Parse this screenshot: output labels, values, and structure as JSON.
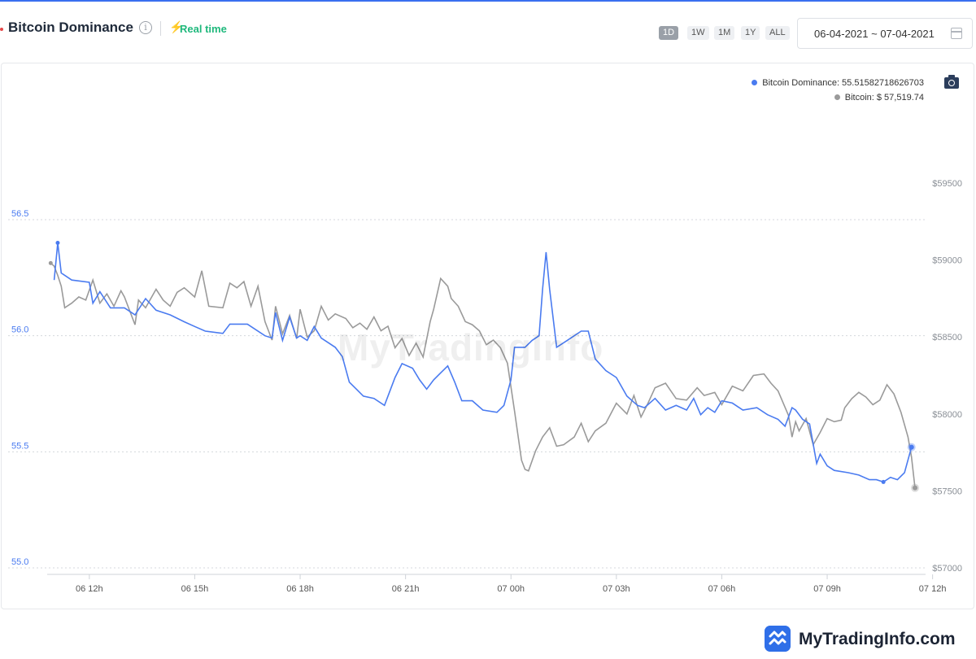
{
  "header": {
    "title": "Bitcoin Dominance",
    "realtime_label": "Real time",
    "ranges": [
      {
        "label": "1D",
        "active": true
      },
      {
        "label": "1W",
        "active": false
      },
      {
        "label": "1M",
        "active": false
      },
      {
        "label": "1Y",
        "active": false
      },
      {
        "label": "ALL",
        "active": false
      }
    ],
    "date_range": "06-04-2021 ~ 07-04-2021"
  },
  "icons": {
    "info": "info-icon",
    "realtime": "bolt-icon",
    "calendar": "calendar-icon",
    "screenshot": "camera-icon",
    "brand": "brand-logo-icon"
  },
  "legend": {
    "dominance": "Bitcoin Dominance: 55.51582718626703",
    "price": "Bitcoin: $ 57,519.74"
  },
  "colors": {
    "dominance": "#4a7bf0",
    "price": "#9a9a9a",
    "accent": "#1fb87c",
    "brand": "#2f6fe8"
  },
  "watermark": "MyTradingInfo",
  "brand": {
    "name": "MyTradingInfo.com"
  },
  "chart_data": {
    "type": "line",
    "x_ticks": [
      "06 12h",
      "06 15h",
      "06 18h",
      "06 21h",
      "07 00h",
      "07 03h",
      "07 06h",
      "07 09h",
      "07 12h"
    ],
    "x_range_hours": [
      10.8,
      35.8
    ],
    "y_left": {
      "ticks": [
        "55.0",
        "55.5",
        "56.0",
        "56.5"
      ],
      "range": [
        55.0,
        56.5
      ]
    },
    "y_right": {
      "ticks": [
        "$57000",
        "$57500",
        "$58000",
        "$58500",
        "$59000",
        "$59500"
      ],
      "range": [
        57000,
        59500
      ]
    },
    "grid": "horizontal dotted",
    "legend_position": "top-right",
    "series": [
      {
        "key": "dominance",
        "axis": "left",
        "points": [
          [
            11.0,
            56.24
          ],
          [
            11.1,
            56.4
          ],
          [
            11.2,
            56.27
          ],
          [
            11.5,
            56.24
          ],
          [
            12.0,
            56.23
          ],
          [
            12.1,
            56.14
          ],
          [
            12.3,
            56.19
          ],
          [
            12.6,
            56.12
          ],
          [
            13.0,
            56.12
          ],
          [
            13.3,
            56.09
          ],
          [
            13.6,
            56.16
          ],
          [
            13.9,
            56.11
          ],
          [
            14.3,
            56.09
          ],
          [
            14.7,
            56.06
          ],
          [
            15.0,
            56.04
          ],
          [
            15.3,
            56.02
          ],
          [
            15.8,
            56.01
          ],
          [
            16.0,
            56.05
          ],
          [
            16.5,
            56.05
          ],
          [
            17.0,
            56.0
          ],
          [
            17.2,
            55.99
          ],
          [
            17.3,
            56.1
          ],
          [
            17.5,
            55.98
          ],
          [
            17.7,
            56.08
          ],
          [
            17.9,
            55.99
          ],
          [
            18.0,
            56.0
          ],
          [
            18.2,
            55.98
          ],
          [
            18.4,
            56.04
          ],
          [
            18.6,
            55.99
          ],
          [
            18.8,
            55.97
          ],
          [
            19.0,
            55.95
          ],
          [
            19.2,
            55.91
          ],
          [
            19.4,
            55.8
          ],
          [
            19.6,
            55.77
          ],
          [
            19.8,
            55.74
          ],
          [
            20.1,
            55.73
          ],
          [
            20.4,
            55.7
          ],
          [
            20.7,
            55.82
          ],
          [
            20.9,
            55.88
          ],
          [
            21.2,
            55.86
          ],
          [
            21.4,
            55.81
          ],
          [
            21.6,
            55.77
          ],
          [
            21.8,
            55.81
          ],
          [
            22.0,
            55.84
          ],
          [
            22.2,
            55.87
          ],
          [
            22.4,
            55.8
          ],
          [
            22.6,
            55.72
          ],
          [
            22.9,
            55.72
          ],
          [
            23.2,
            55.68
          ],
          [
            23.6,
            55.67
          ],
          [
            23.8,
            55.7
          ],
          [
            24.0,
            55.81
          ],
          [
            24.1,
            55.95
          ],
          [
            24.4,
            55.95
          ],
          [
            24.6,
            55.98
          ],
          [
            24.8,
            56.0
          ],
          [
            24.9,
            56.2
          ],
          [
            25.0,
            56.36
          ],
          [
            25.1,
            56.2
          ],
          [
            25.3,
            55.95
          ],
          [
            25.6,
            55.98
          ],
          [
            26.0,
            56.02
          ],
          [
            26.2,
            56.02
          ],
          [
            26.4,
            55.9
          ],
          [
            26.7,
            55.85
          ],
          [
            27.0,
            55.82
          ],
          [
            27.3,
            55.74
          ],
          [
            27.6,
            55.7
          ],
          [
            27.8,
            55.69
          ],
          [
            28.1,
            55.73
          ],
          [
            28.4,
            55.68
          ],
          [
            28.7,
            55.7
          ],
          [
            29.0,
            55.68
          ],
          [
            29.2,
            55.73
          ],
          [
            29.4,
            55.66
          ],
          [
            29.6,
            55.69
          ],
          [
            29.8,
            55.67
          ],
          [
            30.0,
            55.72
          ],
          [
            30.3,
            55.71
          ],
          [
            30.6,
            55.68
          ],
          [
            31.0,
            55.69
          ],
          [
            31.3,
            55.66
          ],
          [
            31.6,
            55.64
          ],
          [
            31.8,
            55.61
          ],
          [
            32.0,
            55.69
          ],
          [
            32.1,
            55.68
          ],
          [
            32.3,
            55.64
          ],
          [
            32.5,
            55.62
          ],
          [
            32.7,
            55.45
          ],
          [
            32.8,
            55.49
          ],
          [
            33.0,
            55.44
          ],
          [
            33.2,
            55.42
          ],
          [
            33.6,
            55.41
          ],
          [
            33.9,
            55.4
          ],
          [
            34.2,
            55.38
          ],
          [
            34.4,
            55.38
          ],
          [
            34.6,
            55.37
          ],
          [
            34.8,
            55.39
          ],
          [
            35.0,
            55.38
          ],
          [
            35.2,
            55.41
          ],
          [
            35.4,
            55.52
          ]
        ]
      },
      {
        "key": "price",
        "axis": "right",
        "points": [
          [
            10.9,
            58980
          ],
          [
            11.0,
            58960
          ],
          [
            11.1,
            58900
          ],
          [
            11.2,
            58830
          ],
          [
            11.3,
            58690
          ],
          [
            11.5,
            58720
          ],
          [
            11.7,
            58760
          ],
          [
            11.9,
            58740
          ],
          [
            12.1,
            58870
          ],
          [
            12.3,
            58720
          ],
          [
            12.5,
            58780
          ],
          [
            12.7,
            58700
          ],
          [
            12.9,
            58800
          ],
          [
            13.0,
            58760
          ],
          [
            13.3,
            58580
          ],
          [
            13.4,
            58740
          ],
          [
            13.6,
            58690
          ],
          [
            13.9,
            58810
          ],
          [
            14.1,
            58740
          ],
          [
            14.3,
            58700
          ],
          [
            14.5,
            58790
          ],
          [
            14.7,
            58820
          ],
          [
            15.0,
            58760
          ],
          [
            15.2,
            58930
          ],
          [
            15.4,
            58700
          ],
          [
            15.8,
            58690
          ],
          [
            16.0,
            58850
          ],
          [
            16.2,
            58820
          ],
          [
            16.4,
            58860
          ],
          [
            16.6,
            58700
          ],
          [
            16.8,
            58830
          ],
          [
            17.0,
            58600
          ],
          [
            17.2,
            58480
          ],
          [
            17.3,
            58700
          ],
          [
            17.5,
            58520
          ],
          [
            17.7,
            58640
          ],
          [
            17.9,
            58490
          ],
          [
            18.0,
            58680
          ],
          [
            18.2,
            58500
          ],
          [
            18.4,
            58540
          ],
          [
            18.6,
            58700
          ],
          [
            18.8,
            58610
          ],
          [
            19.0,
            58650
          ],
          [
            19.3,
            58620
          ],
          [
            19.5,
            58560
          ],
          [
            19.7,
            58590
          ],
          [
            19.9,
            58550
          ],
          [
            20.1,
            58630
          ],
          [
            20.3,
            58540
          ],
          [
            20.5,
            58570
          ],
          [
            20.7,
            58430
          ],
          [
            20.9,
            58490
          ],
          [
            21.1,
            58380
          ],
          [
            21.3,
            58460
          ],
          [
            21.5,
            58370
          ],
          [
            21.7,
            58600
          ],
          [
            21.8,
            58680
          ],
          [
            22.0,
            58880
          ],
          [
            22.2,
            58830
          ],
          [
            22.3,
            58750
          ],
          [
            22.5,
            58700
          ],
          [
            22.7,
            58600
          ],
          [
            22.9,
            58580
          ],
          [
            23.1,
            58540
          ],
          [
            23.3,
            58450
          ],
          [
            23.5,
            58480
          ],
          [
            23.7,
            58430
          ],
          [
            23.9,
            58330
          ],
          [
            24.1,
            58020
          ],
          [
            24.3,
            57700
          ],
          [
            24.4,
            57640
          ],
          [
            24.5,
            57630
          ],
          [
            24.7,
            57760
          ],
          [
            24.9,
            57850
          ],
          [
            25.1,
            57910
          ],
          [
            25.3,
            57790
          ],
          [
            25.5,
            57800
          ],
          [
            25.8,
            57850
          ],
          [
            26.0,
            57940
          ],
          [
            26.2,
            57820
          ],
          [
            26.4,
            57890
          ],
          [
            26.7,
            57940
          ],
          [
            27.0,
            58070
          ],
          [
            27.3,
            58000
          ],
          [
            27.5,
            58120
          ],
          [
            27.7,
            57980
          ],
          [
            27.9,
            58070
          ],
          [
            28.1,
            58170
          ],
          [
            28.4,
            58200
          ],
          [
            28.7,
            58100
          ],
          [
            29.0,
            58090
          ],
          [
            29.3,
            58170
          ],
          [
            29.5,
            58120
          ],
          [
            29.8,
            58140
          ],
          [
            30.0,
            58060
          ],
          [
            30.3,
            58180
          ],
          [
            30.6,
            58150
          ],
          [
            30.9,
            58250
          ],
          [
            31.2,
            58260
          ],
          [
            31.4,
            58200
          ],
          [
            31.6,
            58150
          ],
          [
            31.9,
            57990
          ],
          [
            32.0,
            57850
          ],
          [
            32.1,
            57950
          ],
          [
            32.2,
            57890
          ],
          [
            32.4,
            57970
          ],
          [
            32.6,
            57800
          ],
          [
            32.8,
            57880
          ],
          [
            33.0,
            57970
          ],
          [
            33.2,
            57950
          ],
          [
            33.4,
            57960
          ],
          [
            33.5,
            58040
          ],
          [
            33.7,
            58100
          ],
          [
            33.9,
            58140
          ],
          [
            34.1,
            58110
          ],
          [
            34.3,
            58060
          ],
          [
            34.5,
            58090
          ],
          [
            34.7,
            58190
          ],
          [
            34.9,
            58130
          ],
          [
            35.1,
            58010
          ],
          [
            35.3,
            57850
          ],
          [
            35.4,
            57720
          ],
          [
            35.5,
            57519.74
          ]
        ]
      }
    ]
  }
}
